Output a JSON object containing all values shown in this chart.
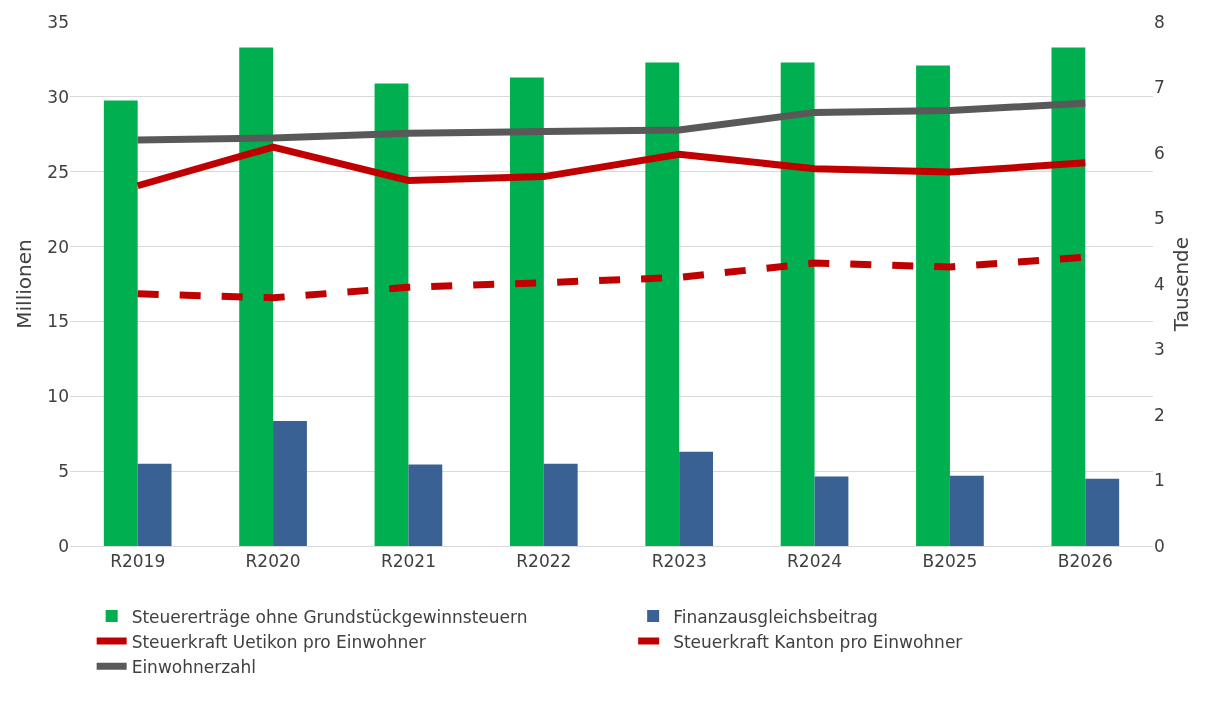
{
  "chart_data": {
    "type": "bar",
    "ylabel": "Millionen",
    "y2label": "Tausende",
    "categories": [
      "R2019",
      "R2020",
      "R2021",
      "R2022",
      "R2023",
      "R2024",
      "B2025",
      "B2026"
    ],
    "series": [
      {
        "name": "Steuererträge ohne Grundstückgewinnsteuern",
        "color": "#00b050",
        "values": [
          29.75,
          33.3,
          30.9,
          31.3,
          32.3,
          32.3,
          32.1,
          33.3
        ]
      },
      {
        "name": "Finanzausgleichsbeitrag",
        "color": "#3a6193",
        "values": [
          5.5,
          8.35,
          5.45,
          5.5,
          6.3,
          4.65,
          4.7,
          4.5
        ]
      },
      {
        "name": "Steuerkraft Uetikon pro Einwohner",
        "type": "line",
        "axis": "y2",
        "color": "#c00000",
        "line_style": "solid",
        "values": [
          5.5,
          6.09,
          5.58,
          5.64,
          5.98,
          5.76,
          5.71,
          5.85
        ]
      },
      {
        "name": "Steuerkraft Kanton pro Einwohner",
        "type": "line",
        "axis": "y2",
        "color": "#c00000",
        "line_style": "dashed",
        "values": [
          3.85,
          3.79,
          3.95,
          4.02,
          4.1,
          4.32,
          4.26,
          4.41
        ]
      },
      {
        "name": "Einwohnerzahl",
        "type": "line",
        "axis": "y2",
        "color": "#595959",
        "line_style": "solid",
        "values": [
          6.2,
          6.23,
          6.3,
          6.33,
          6.35,
          6.62,
          6.65,
          6.76
        ]
      }
    ],
    "ylim": [
      0,
      35
    ],
    "yticks": [
      0,
      5,
      10,
      15,
      20,
      25,
      30,
      35
    ],
    "y2lim": [
      0,
      8
    ],
    "y2ticks": [
      0,
      1,
      2,
      3,
      4,
      5,
      6,
      7,
      8
    ],
    "grid": "y",
    "legend": "bottom",
    "marker": "none"
  }
}
